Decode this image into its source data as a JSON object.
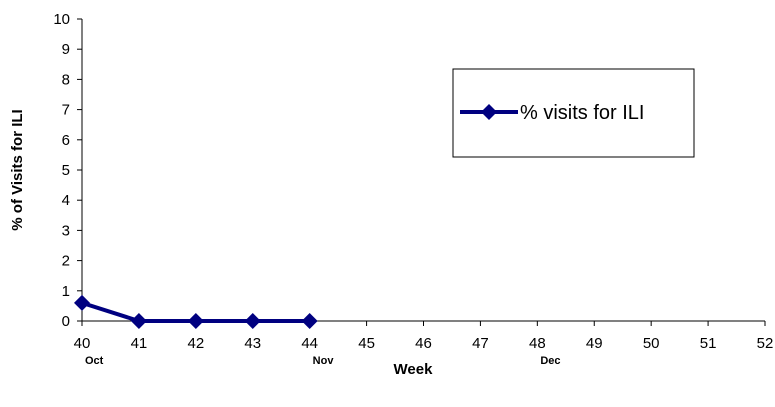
{
  "chart_data": {
    "type": "line",
    "xlabel": "Week",
    "ylabel": "% of Visits for ILI",
    "x_ticks": [
      "40",
      "41",
      "42",
      "43",
      "44",
      "45",
      "46",
      "47",
      "48",
      "49",
      "50",
      "51",
      "52"
    ],
    "month_labels": [
      {
        "week": "40",
        "label": "Oct"
      },
      {
        "week": "44",
        "label": "Nov"
      },
      {
        "week": "48",
        "label": "Dec"
      }
    ],
    "ylim": [
      0,
      10
    ],
    "y_ticks": [
      0,
      1,
      2,
      3,
      4,
      5,
      6,
      7,
      8,
      9,
      10
    ],
    "series": [
      {
        "name": "% visits for ILI",
        "x": [
          "40",
          "41",
          "42",
          "43",
          "44"
        ],
        "values": [
          0.6,
          0,
          0,
          0,
          0
        ],
        "color": "#000080",
        "marker": "diamond"
      }
    ],
    "legend": {
      "placement": "right"
    },
    "grid": false
  }
}
